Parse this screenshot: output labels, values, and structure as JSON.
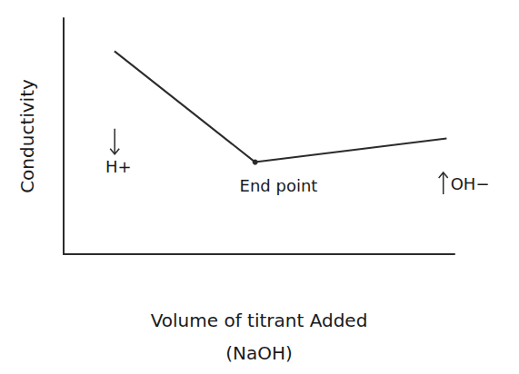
{
  "chart_data": {
    "type": "line",
    "xlabel": "Volume of titrant Added\n(NaOH)",
    "ylabel": "Conductivity",
    "x": [
      1.3,
      4.9,
      9.8
    ],
    "values": [
      8.6,
      3.9,
      4.9
    ],
    "color": "#2b2b2b",
    "xlim": [
      0,
      10
    ],
    "ylim": [
      0,
      10
    ],
    "xticks": [],
    "yticks": [],
    "tick_labels": false,
    "grid": false,
    "annotations": [
      {
        "text": "H+",
        "x": 1.4,
        "y": 3.7,
        "arrow": "down"
      },
      {
        "text": "End point",
        "x": 5.5,
        "y": 2.9
      },
      {
        "text": "OH−",
        "x": 9.9,
        "y": 3.0,
        "arrow": "up"
      }
    ]
  }
}
